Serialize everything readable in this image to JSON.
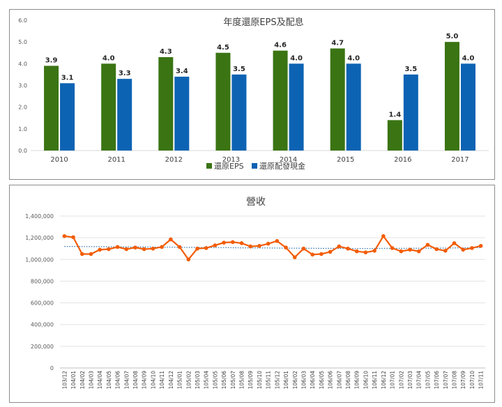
{
  "charts": [
    {
      "chart_data": {
        "type": "bar",
        "title": "年度還原EPS及配息",
        "xlabel": "",
        "ylabel": "",
        "categories": [
          "2010",
          "2011",
          "2012",
          "2013",
          "2014",
          "2015",
          "2016",
          "2017"
        ],
        "series": [
          {
            "name": "還原EPS",
            "color": "#3a7413",
            "values": [
              3.9,
              4.0,
              4.3,
              4.5,
              4.6,
              4.7,
              1.4,
              5.0
            ]
          },
          {
            "name": "還原配發現金",
            "color": "#0d63b3",
            "values": [
              3.1,
              3.3,
              3.4,
              3.5,
              4.0,
              4.0,
              3.5,
              4.0
            ]
          }
        ],
        "ylim": [
          0,
          6
        ],
        "yticks": [
          "0.0",
          "1.0",
          "2.0",
          "3.0",
          "4.0",
          "5.0",
          "6.0"
        ],
        "data_labels": true,
        "grid": false,
        "legend_position": "bottom"
      }
    },
    {
      "chart_data": {
        "type": "line",
        "title": "營收",
        "xlabel": "",
        "ylabel": "",
        "x": [
          "103/12",
          "104/01",
          "104/02",
          "104/03",
          "104/04",
          "104/05",
          "104/06",
          "104/07",
          "104/08",
          "104/09",
          "104/10",
          "104/11",
          "104/12",
          "105/01",
          "105/02",
          "105/03",
          "105/04",
          "105/05",
          "105/06",
          "105/07",
          "105/08",
          "105/09",
          "105/10",
          "105/11",
          "105/12",
          "106/01",
          "106/02",
          "106/03",
          "106/04",
          "106/05",
          "106/06",
          "106/07",
          "106/08",
          "106/09",
          "106/10",
          "106/11",
          "106/12",
          "107/01",
          "107/02",
          "107/03",
          "107/04",
          "107/05",
          "107/06",
          "107/07",
          "107/08",
          "107/09",
          "107/10",
          "107/11"
        ],
        "series": [
          {
            "color": "#f25c05",
            "values": [
              1215000,
              1205000,
              1050000,
              1050000,
              1090000,
              1095000,
              1115000,
              1095000,
              1110000,
              1095000,
              1100000,
              1115000,
              1185000,
              1115000,
              1000000,
              1100000,
              1105000,
              1130000,
              1155000,
              1160000,
              1150000,
              1120000,
              1125000,
              1145000,
              1170000,
              1110000,
              1020000,
              1100000,
              1045000,
              1050000,
              1070000,
              1120000,
              1100000,
              1075000,
              1065000,
              1080000,
              1215000,
              1105000,
              1075000,
              1090000,
              1075000,
              1135000,
              1095000,
              1080000,
              1150000,
              1090000,
              1105000,
              1125000
            ]
          },
          {
            "type": "trendline",
            "color": "#2b6fad",
            "values": [
              1120000,
              1120000,
              1119000,
              1118000,
              1118000,
              1117000,
              1116000,
              1116000,
              1115000,
              1115000,
              1114000,
              1113000,
              1113000,
              1112000,
              1111000,
              1111000,
              1110000,
              1109000,
              1109000,
              1108000,
              1107000,
              1107000,
              1106000,
              1106000,
              1105000,
              1104000,
              1104000,
              1103000,
              1103000,
              1102000,
              1102000,
              1102000,
              1101000,
              1101000,
              1101000,
              1101000,
              1102000,
              1102000,
              1102000,
              1103000,
              1103000,
              1104000,
              1104000,
              1105000,
              1106000,
              1107000,
              1108000,
              1109000
            ]
          }
        ],
        "ylim": [
          0,
          1400000
        ],
        "yticks": [
          "0",
          "200,000",
          "400,000",
          "600,000",
          "800,000",
          "1,000,000",
          "1,200,000",
          "1,400,000"
        ],
        "grid": true,
        "legend_position": "none"
      }
    }
  ]
}
